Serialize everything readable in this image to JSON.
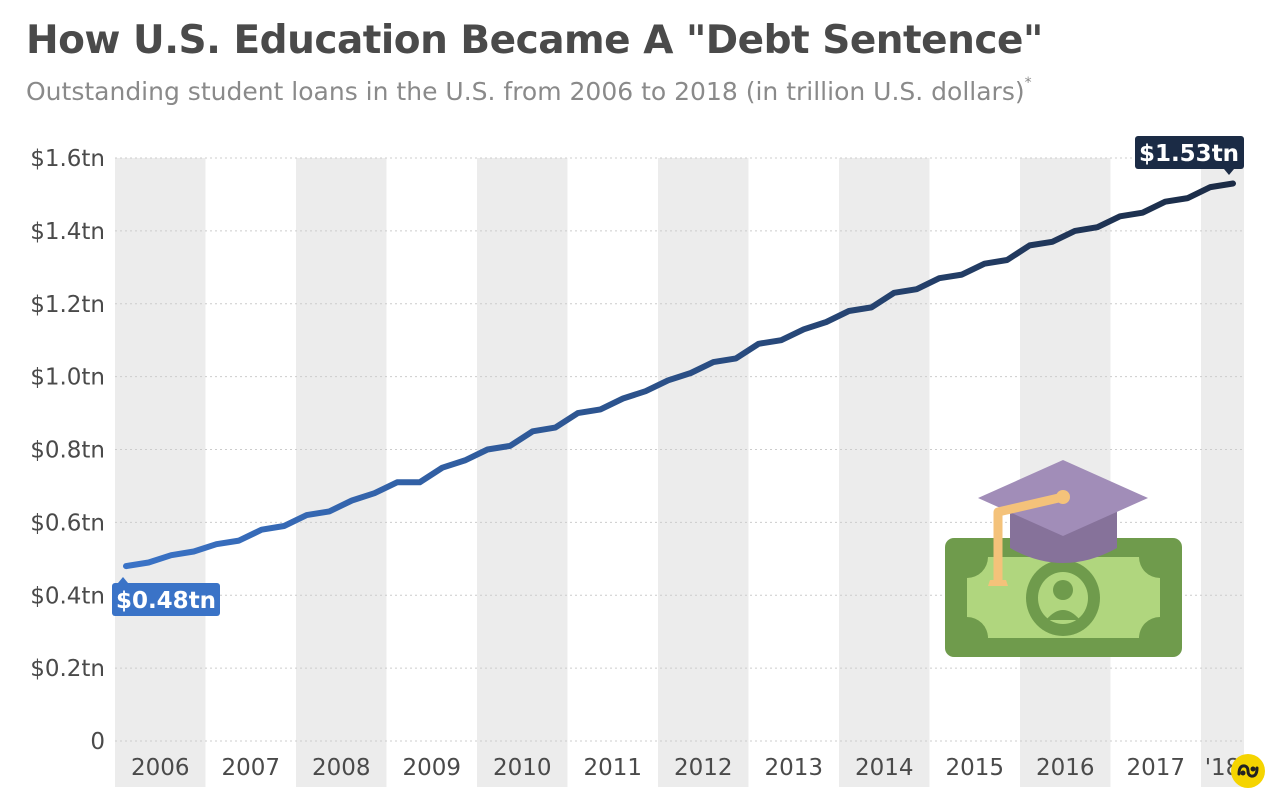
{
  "header": {
    "title": "How U.S. Education Became A \"Debt Sentence\"",
    "subtitle": "Outstanding student loans in the U.S. from 2006 to 2018 (in trillion U.S. dollars)",
    "subtitle_mark": "*"
  },
  "colors": {
    "line_start": "#3a73c7",
    "line_end": "#1b2b45",
    "band": "#ececec",
    "grid": "#cccccc",
    "text": "#4a4a4a",
    "start_callout": "#3a73c7",
    "end_callout": "#1b2b45",
    "brand": "#f5d400"
  },
  "chart_data": {
    "type": "line",
    "title": "How U.S. Education Became A \"Debt Sentence\"",
    "subtitle": "Outstanding student loans in the U.S. from 2006 to 2018 (in trillion U.S. dollars)",
    "xlabel": "",
    "ylabel": "",
    "categories": [
      "2006",
      "2007",
      "2008",
      "2009",
      "2010",
      "2011",
      "2012",
      "2013",
      "2014",
      "2015",
      "2016",
      "2017",
      "'18"
    ],
    "yticks": [
      0,
      0.2,
      0.4,
      0.6,
      0.8,
      1.0,
      1.2,
      1.4,
      1.6
    ],
    "ytick_labels": [
      "0",
      "$0.2tn",
      "$0.4tn",
      "$0.6tn",
      "$0.8tn",
      "$1.0tn",
      "$1.2tn",
      "$1.4tn",
      "$1.6tn"
    ],
    "ylim": [
      0,
      1.6
    ],
    "grid": true,
    "series": [
      {
        "x": [
          "2006 Q1",
          "2006 Q2",
          "2006 Q3",
          "2006 Q4",
          "2007 Q1",
          "2007 Q2",
          "2007 Q3",
          "2007 Q4",
          "2008 Q1",
          "2008 Q2",
          "2008 Q3",
          "2008 Q4",
          "2009 Q1",
          "2009 Q2",
          "2009 Q3",
          "2009 Q4",
          "2010 Q1",
          "2010 Q2",
          "2010 Q3",
          "2010 Q4",
          "2011 Q1",
          "2011 Q2",
          "2011 Q3",
          "2011 Q4",
          "2012 Q1",
          "2012 Q2",
          "2012 Q3",
          "2012 Q4",
          "2013 Q1",
          "2013 Q2",
          "2013 Q3",
          "2013 Q4",
          "2014 Q1",
          "2014 Q2",
          "2014 Q3",
          "2014 Q4",
          "2015 Q1",
          "2015 Q2",
          "2015 Q3",
          "2015 Q4",
          "2016 Q1",
          "2016 Q2",
          "2016 Q3",
          "2016 Q4",
          "2017 Q1",
          "2017 Q2",
          "2017 Q3",
          "2017 Q4",
          "2018 Q1",
          "2018 Q2"
        ],
        "values": [
          0.48,
          0.49,
          0.51,
          0.52,
          0.54,
          0.55,
          0.58,
          0.59,
          0.62,
          0.63,
          0.66,
          0.68,
          0.71,
          0.71,
          0.75,
          0.77,
          0.8,
          0.81,
          0.85,
          0.86,
          0.9,
          0.91,
          0.94,
          0.96,
          0.99,
          1.01,
          1.04,
          1.05,
          1.09,
          1.1,
          1.13,
          1.15,
          1.18,
          1.19,
          1.23,
          1.24,
          1.27,
          1.28,
          1.31,
          1.32,
          1.36,
          1.37,
          1.4,
          1.41,
          1.44,
          1.45,
          1.48,
          1.49,
          1.52,
          1.53
        ]
      }
    ],
    "annotations": [
      {
        "label": "$0.48tn",
        "value": 0.48
      },
      {
        "label": "$1.53tn",
        "value": 1.53
      }
    ]
  },
  "illustration": {
    "icon": "graduation-cap-on-dollar-bill-icon"
  },
  "branding": {
    "icon": "statista-logo-icon"
  }
}
